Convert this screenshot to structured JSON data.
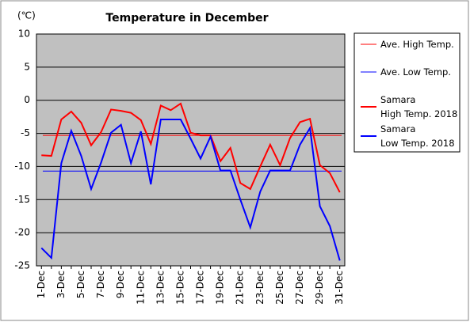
{
  "chart_data": {
    "type": "line",
    "title": "Temperature in December",
    "y_unit": "(℃)",
    "categories": [
      "1-Dec",
      null,
      "3-Dec",
      null,
      "5-Dec",
      null,
      "7-Dec",
      null,
      "9-Dec",
      null,
      "11-Dec",
      null,
      "13-Dec",
      null,
      "15-Dec",
      null,
      "17-Dec",
      null,
      "19-Dec",
      null,
      "21-Dec",
      null,
      "23-Dec",
      null,
      "25-Dec",
      null,
      "27-Dec",
      null,
      "29-Dec",
      null,
      "31-Dec"
    ],
    "series": [
      {
        "name": "Ave. High Temp.",
        "color": "#ff0000",
        "value": -5.3
      },
      {
        "name": "Ave. Low Temp.",
        "color": "#0000ff",
        "value": -10.7
      },
      {
        "name": "Samara\nHigh Temp. 2018",
        "color": "#ff0000",
        "values": [
          -8.3,
          -8.4,
          -2.9,
          -1.7,
          -3.4,
          -6.8,
          -4.8,
          -1.4,
          -1.6,
          -1.9,
          -3.0,
          -6.6,
          -0.8,
          -1.5,
          -0.5,
          -4.9,
          -5.3,
          -5.3,
          -9.2,
          -7.2,
          -12.5,
          -13.4,
          -10.0,
          -6.7,
          -9.8,
          -5.7,
          -3.3,
          -2.8,
          -9.8,
          -11.0,
          -13.9
        ]
      },
      {
        "name": "Samara\nLow Temp. 2018",
        "color": "#0000ff",
        "values": [
          -22.3,
          -23.8,
          -9.5,
          -4.6,
          -8.4,
          -13.4,
          -9.4,
          -4.9,
          -3.7,
          -9.5,
          -4.7,
          -12.7,
          -2.9,
          -2.9,
          -2.9,
          -5.8,
          -8.8,
          -5.5,
          -10.6,
          -10.6,
          -15.0,
          -19.2,
          -13.8,
          -10.6,
          -10.6,
          -10.6,
          -6.7,
          -4.2,
          -16.0,
          -19.0,
          -24.2
        ]
      }
    ],
    "ylim": [
      -25,
      10
    ],
    "yticks": [
      -25,
      -20,
      -15,
      -10,
      -5,
      0,
      5,
      10
    ],
    "grid": true,
    "plot_background": "#c0c0c0"
  }
}
